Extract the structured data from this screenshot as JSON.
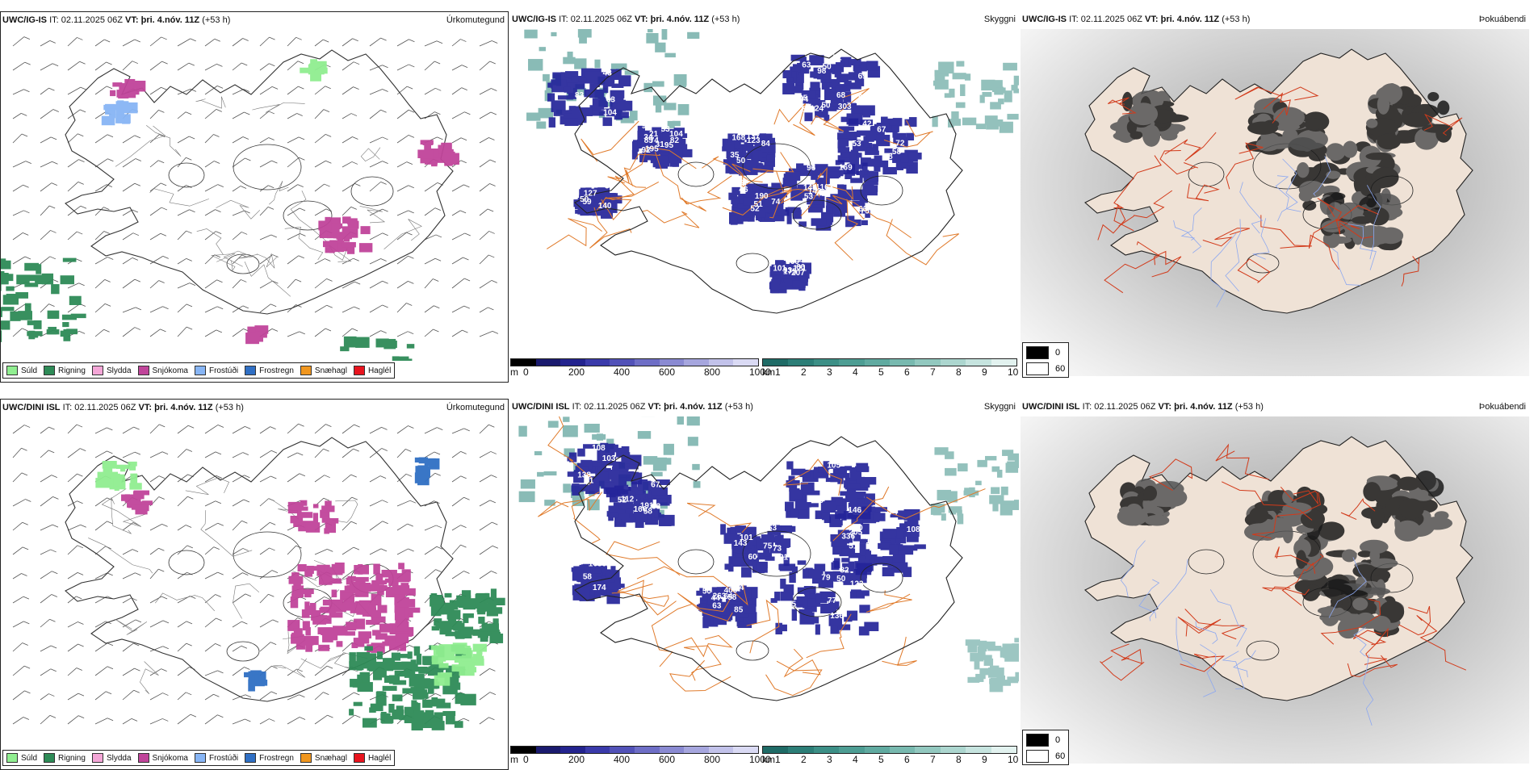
{
  "rows": [
    {
      "model": "UWC/IG-IS",
      "panels": {
        "precip": {
          "model": "UWC/IG-IS",
          "it_label": "IT: 02.11.2025 06Z",
          "vt_prefix": "VT:",
          "vt_value": "þri. 4.nóv. 11Z",
          "lead": "(+53 h)",
          "type": "Úrkomutegund"
        },
        "ceiling": {
          "model": "UWC/IG-IS",
          "it_label": "IT: 02.11.2025 06Z",
          "vt_prefix": "VT:",
          "vt_value": "þri. 4.nóv. 11Z",
          "lead": "(+53 h)",
          "type": "Skyggni",
          "labels": [
            "194",
            "303",
            "195",
            "92",
            "121",
            "169",
            "168",
            "222",
            "53",
            "50",
            "51",
            "42",
            "34",
            "52",
            "69",
            "38",
            "53",
            "43",
            "53",
            "52",
            "85",
            "58",
            "60",
            "50",
            "74",
            "59",
            "83",
            "72",
            "63",
            "68",
            "207",
            "82",
            "93",
            "104",
            "137",
            "60",
            "175",
            "50",
            "163",
            "140",
            "104",
            "97",
            "101",
            "64",
            "21",
            "190",
            "105",
            "142",
            "123",
            "98",
            "67",
            "124",
            "148",
            "71",
            "75",
            "95",
            "63",
            "84",
            "96",
            "127",
            "74",
            "87",
            "67",
            "31",
            "53",
            "50",
            "49",
            "46",
            "35",
            "63"
          ]
        },
        "fog": {
          "model": "UWC/IG-IS",
          "it_label": "IT: 02.11.2025 06Z",
          "vt_prefix": "VT:",
          "vt_value": "þri. 4.nóv. 11Z",
          "lead": "(+53 h)",
          "type": "Þokuábendi"
        }
      }
    },
    {
      "model": "UWC/DINI ISL",
      "panels": {
        "precip": {
          "model": "UWC/DINI ISL",
          "it_label": "IT: 02.11.2025 06Z",
          "vt_prefix": "VT:",
          "vt_value": "þri. 4.nóv. 11Z",
          "lead": "(+53 h)",
          "type": "Úrkomutegund"
        },
        "ceiling": {
          "model": "UWC/DINI ISL",
          "it_label": "IT: 02.11.2025 06Z",
          "vt_prefix": "VT:",
          "vt_value": "þri. 4.nóv. 11Z",
          "lead": "(+53 h)",
          "type": "Skyggni",
          "labels": [
            "123",
            "263",
            "44",
            "31",
            "64",
            "63",
            "58",
            "108",
            "79",
            "101",
            "85",
            "82",
            "73",
            "56",
            "58",
            "52",
            "50",
            "74",
            "77",
            "80",
            "73",
            "98",
            "143",
            "166",
            "75",
            "69",
            "67",
            "61",
            "51",
            "63",
            "58",
            "50",
            "119",
            "105",
            "138",
            "108",
            "400",
            "117",
            "134",
            "146",
            "121",
            "174",
            "60",
            "63",
            "103",
            "136",
            "191",
            "336",
            "205",
            "163",
            "112",
            "85"
          ]
        },
        "fog": {
          "model": "UWC/DINI ISL",
          "it_label": "IT: 02.11.2025 06Z",
          "vt_prefix": "VT:",
          "vt_value": "þri. 4.nóv. 11Z",
          "lead": "(+53 h)",
          "type": "Þokuábendi"
        }
      }
    }
  ],
  "precip_legend": [
    {
      "label": "Súld",
      "color": "#90ee90"
    },
    {
      "label": "Rigning",
      "color": "#2e8b57"
    },
    {
      "label": "Slydda",
      "color": "#f4a6d7"
    },
    {
      "label": "Snjókoma",
      "color": "#c0449a"
    },
    {
      "label": "Frostúði",
      "color": "#87b5f5"
    },
    {
      "label": "Frostregn",
      "color": "#2f6fc4"
    },
    {
      "label": "Snæhagl",
      "color": "#f0961e"
    },
    {
      "label": "Haglél",
      "color": "#e8141e"
    }
  ],
  "ceiling_bar": {
    "unit": "m",
    "ticks": [
      "0",
      "200",
      "400",
      "600",
      "800",
      "1000"
    ],
    "colors": [
      "#000000",
      "#1a1a6e",
      "#23238e",
      "#3a3aaa",
      "#5252b8",
      "#6e6ec6",
      "#8a8ad2",
      "#a6a6de",
      "#c2c2ea",
      "#dadaf4"
    ]
  },
  "vis_bar": {
    "unit": "km",
    "ticks": [
      "1",
      "2",
      "3",
      "4",
      "5",
      "6",
      "7",
      "8",
      "9",
      "10"
    ],
    "colors": [
      "#1f6b66",
      "#2c7e77",
      "#3c8f86",
      "#4d9d93",
      "#60aaa0",
      "#78b9af",
      "#92c8bf",
      "#acd6cf",
      "#c6e4df",
      "#e2f2ef"
    ]
  },
  "fog_legend": [
    {
      "label": "0",
      "color": "#000000"
    },
    {
      "label": "60",
      "color": "#ffffff"
    }
  ],
  "colors": {
    "snow": "#c0449a",
    "rain": "#2e8b57",
    "drizzle": "#90ee90",
    "lowceil": "#24249a",
    "vis": "#3c8f86",
    "roads": "#e07a2a",
    "coast": "#222222"
  }
}
